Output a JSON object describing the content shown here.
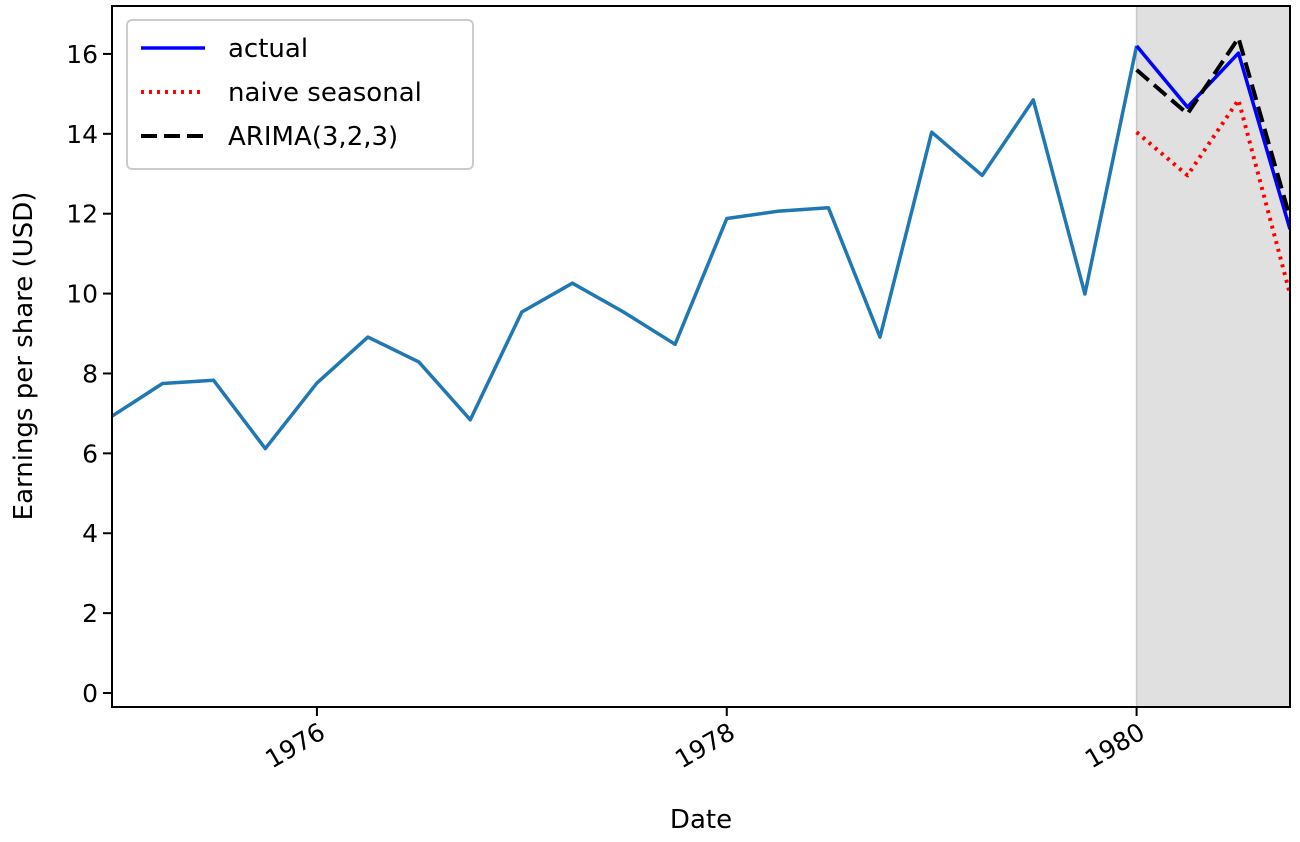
{
  "chart_data": {
    "type": "line",
    "xlabel": "Date",
    "ylabel": "Earnings per share (USD)",
    "xlim": [
      "1975-01-01",
      "1980-10-01"
    ],
    "ylim": [
      -0.35,
      17.2
    ],
    "x_ticks": [
      "1976",
      "1978",
      "1980"
    ],
    "y_ticks": [
      0,
      2,
      4,
      6,
      8,
      10,
      12,
      14,
      16
    ],
    "grid": false,
    "legend_position": "top-left",
    "shaded_region": {
      "from": "1980-01-01",
      "to": "1980-10-01",
      "color": "#e0e0e0"
    },
    "series": [
      {
        "color": "#1f77b4",
        "style": "solid",
        "points": [
          [
            "1975-01-01",
            6.93
          ],
          [
            "1975-04-01",
            7.75
          ],
          [
            "1975-07-01",
            7.83
          ],
          [
            "1975-10-01",
            6.12
          ],
          [
            "1976-01-01",
            7.76
          ],
          [
            "1976-04-01",
            8.91
          ],
          [
            "1976-07-01",
            8.29
          ],
          [
            "1976-10-01",
            6.84
          ],
          [
            "1977-01-01",
            9.54
          ],
          [
            "1977-04-01",
            10.26
          ],
          [
            "1977-07-01",
            9.54
          ],
          [
            "1977-10-01",
            8.73
          ],
          [
            "1978-01-01",
            11.88
          ],
          [
            "1978-04-01",
            12.06
          ],
          [
            "1978-07-01",
            12.15
          ],
          [
            "1978-10-01",
            8.91
          ],
          [
            "1979-01-01",
            14.04
          ],
          [
            "1979-04-01",
            12.96
          ],
          [
            "1979-07-01",
            14.85
          ],
          [
            "1979-10-01",
            9.99
          ],
          [
            "1980-01-01",
            16.2
          ]
        ]
      },
      {
        "name": "actual",
        "color": "#0000ff",
        "style": "solid",
        "points": [
          [
            "1980-01-01",
            16.2
          ],
          [
            "1980-04-01",
            14.67
          ],
          [
            "1980-07-01",
            16.02
          ],
          [
            "1980-10-01",
            11.61
          ]
        ]
      },
      {
        "name": "naive seasonal",
        "color": "#ff0000",
        "style": "dotted",
        "points": [
          [
            "1980-01-01",
            14.04
          ],
          [
            "1980-04-01",
            12.96
          ],
          [
            "1980-07-01",
            14.85
          ],
          [
            "1980-10-01",
            9.99
          ]
        ]
      },
      {
        "name": "ARIMA(3,2,3)",
        "color": "#000000",
        "style": "dashed",
        "points": [
          [
            "1980-01-01",
            15.6
          ],
          [
            "1980-04-01",
            14.5
          ],
          [
            "1980-07-01",
            16.4
          ],
          [
            "1980-10-01",
            11.9
          ]
        ]
      }
    ]
  }
}
